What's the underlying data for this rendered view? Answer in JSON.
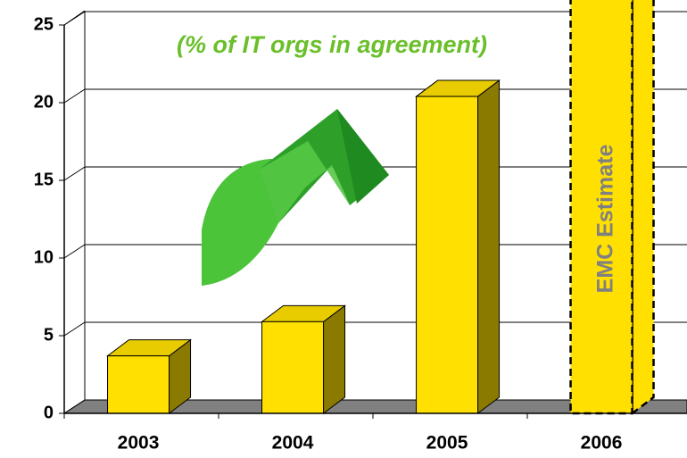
{
  "chart_data": {
    "type": "bar3d",
    "annotations": [
      "(% of IT orgs in agreement)",
      "EMC Estimate"
    ],
    "categories": [
      "2003",
      "2004",
      "2005",
      "2006"
    ],
    "values": [
      3.7,
      5.9,
      20.4,
      30
    ],
    "color": "#ffe000",
    "ylim": [
      0,
      25
    ],
    "yticks": [
      0,
      5,
      10,
      15,
      20,
      25
    ],
    "grid": true
  }
}
